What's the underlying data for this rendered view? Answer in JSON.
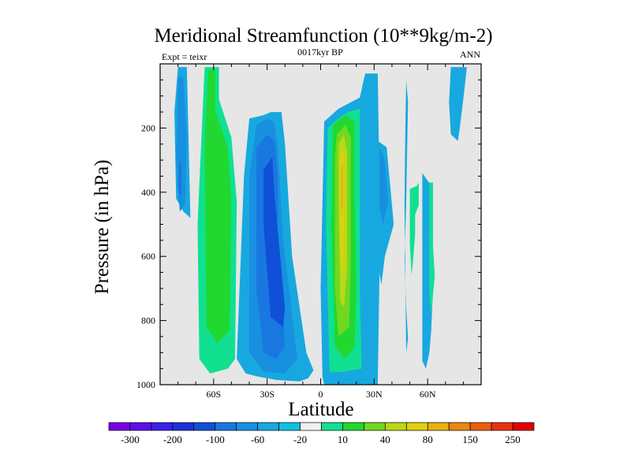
{
  "chart_data": {
    "type": "heatmap",
    "title": "Meridional Streamfunction (10**9kg/m-2)",
    "subtitle_center": "0017kyr BP",
    "subtitle_left": "Expt = teixr",
    "subtitle_right": "ANN",
    "xlabel": "Latitude",
    "ylabel": "Pressure (in hPa)",
    "xlim": [
      -90,
      90
    ],
    "ylim": [
      1000,
      0
    ],
    "xticks": [
      {
        "value": -60,
        "label": "60S"
      },
      {
        "value": -30,
        "label": "30S"
      },
      {
        "value": 0,
        "label": "0"
      },
      {
        "value": 30,
        "label": "30N"
      },
      {
        "value": 60,
        "label": "60N"
      }
    ],
    "yticks": [
      {
        "value": 200,
        "label": "200"
      },
      {
        "value": 400,
        "label": "400"
      },
      {
        "value": 600,
        "label": "600"
      },
      {
        "value": 800,
        "label": "800"
      },
      {
        "value": 1000,
        "label": "1000"
      }
    ],
    "background_color": "#e6e6e6",
    "colorbar": {
      "colors": [
        "#7a00e0",
        "#5a10e8",
        "#3a20e8",
        "#2030d8",
        "#1050d8",
        "#1878e0",
        "#1890e0",
        "#18a8e0",
        "#10c0e0",
        "#f0f0f0",
        "#10e090",
        "#20d830",
        "#70d820",
        "#b8d818",
        "#e0d010",
        "#e8b010",
        "#e88810",
        "#e86010",
        "#e83010",
        "#e00000"
      ],
      "labels": [
        "-300",
        "-200",
        "-100",
        "-60",
        "-20",
        "10",
        "40",
        "80",
        "150",
        "250"
      ]
    },
    "regions": [
      {
        "level": 7,
        "points": [
          [
            -80,
            10
          ],
          [
            -75,
            10
          ],
          [
            -73,
            480
          ],
          [
            -77,
            460
          ],
          [
            -81,
            420
          ],
          [
            -82,
            150
          ]
        ]
      },
      {
        "level": 7,
        "points": [
          [
            -43,
            350
          ],
          [
            -40,
            170
          ],
          [
            -32,
            160
          ],
          [
            -28,
            150
          ],
          [
            -22,
            150
          ],
          [
            -20,
            250
          ],
          [
            -16,
            600
          ],
          [
            -8,
            900
          ],
          [
            -4,
            955
          ],
          [
            -7,
            980
          ],
          [
            -12,
            990
          ],
          [
            -25,
            985
          ],
          [
            -35,
            975
          ],
          [
            -42,
            965
          ],
          [
            -47,
            920
          ]
        ]
      },
      {
        "level": 7,
        "points": [
          [
            25,
            30
          ],
          [
            32,
            30
          ],
          [
            33,
            380
          ],
          [
            33,
            655
          ],
          [
            32,
            1000
          ],
          [
            2,
            1000
          ],
          [
            1,
            975
          ],
          [
            0,
            700
          ],
          [
            2,
            180
          ],
          [
            10,
            140
          ],
          [
            22,
            105
          ]
        ]
      },
      {
        "level": 7,
        "points": [
          [
            73,
            10
          ],
          [
            82,
            10
          ],
          [
            80,
            110
          ],
          [
            78,
            200
          ],
          [
            77,
            240
          ],
          [
            73,
            220
          ],
          [
            72,
            120
          ]
        ]
      },
      {
        "level": 7,
        "points": [
          [
            48,
            50
          ],
          [
            49,
            120
          ],
          [
            48,
            430
          ],
          [
            47,
            610
          ],
          [
            48,
            760
          ],
          [
            49,
            855
          ],
          [
            48,
            900
          ],
          [
            47,
            440
          ],
          [
            47.5,
            200
          ]
        ]
      },
      {
        "level": 7,
        "points": [
          [
            32,
            240
          ],
          [
            37,
            260
          ],
          [
            41,
            500
          ],
          [
            36,
            600
          ],
          [
            34,
            690
          ],
          [
            33,
            650
          ],
          [
            32,
            450
          ]
        ]
      },
      {
        "level": 7,
        "points": [
          [
            57,
            340
          ],
          [
            62,
            380
          ],
          [
            61,
            540
          ],
          [
            63,
            700
          ],
          [
            62,
            830
          ],
          [
            61,
            900
          ],
          [
            59,
            950
          ],
          [
            57,
            925
          ],
          [
            57,
            600
          ]
        ]
      },
      {
        "level": 6,
        "points": [
          [
            -80,
            40
          ],
          [
            -77,
            40
          ],
          [
            -75,
            230
          ],
          [
            -76,
            440
          ],
          [
            -79,
            460
          ],
          [
            -81,
            300
          ]
        ]
      },
      {
        "level": 6,
        "points": [
          [
            -40,
            350
          ],
          [
            -36,
            190
          ],
          [
            -30,
            170
          ],
          [
            -26,
            180
          ],
          [
            -24,
            260
          ],
          [
            -21,
            550
          ],
          [
            -13,
            920
          ],
          [
            -20,
            965
          ],
          [
            -32,
            960
          ],
          [
            -40,
            900
          ]
        ]
      },
      {
        "level": 6,
        "points": [
          [
            33,
            260
          ],
          [
            36,
            300
          ],
          [
            38,
            430
          ],
          [
            35,
            500
          ],
          [
            33,
            450
          ]
        ]
      },
      {
        "level": 5,
        "points": [
          [
            -79,
            300
          ],
          [
            -78,
            320
          ],
          [
            -78,
            400
          ],
          [
            -79,
            420
          ],
          [
            -80,
            380
          ]
        ]
      },
      {
        "level": 5,
        "points": [
          [
            -36,
            260
          ],
          [
            -30,
            220
          ],
          [
            -26,
            240
          ],
          [
            -24,
            340
          ],
          [
            -24,
            520
          ],
          [
            -20,
            880
          ],
          [
            -25,
            920
          ],
          [
            -32,
            900
          ],
          [
            -36,
            700
          ]
        ]
      },
      {
        "level": 4,
        "points": [
          [
            -32,
            330
          ],
          [
            -27,
            290
          ],
          [
            -26,
            400
          ],
          [
            -20,
            760
          ],
          [
            -21,
            820
          ],
          [
            -28,
            790
          ],
          [
            -32,
            500
          ]
        ]
      },
      {
        "level": 10,
        "points": [
          [
            -65,
            10
          ],
          [
            -57,
            10
          ],
          [
            -57,
            110
          ],
          [
            -50,
            230
          ],
          [
            -47,
            430
          ],
          [
            -48,
            920
          ],
          [
            -52,
            950
          ],
          [
            -62,
            965
          ],
          [
            -68,
            920
          ],
          [
            -69,
            500
          ],
          [
            -67,
            250
          ]
        ]
      },
      {
        "level": 11,
        "points": [
          [
            -63,
            20
          ],
          [
            -59,
            20
          ],
          [
            -59,
            150
          ],
          [
            -52,
            260
          ],
          [
            -50,
            420
          ],
          [
            -51,
            830
          ],
          [
            -58,
            870
          ],
          [
            -64,
            820
          ],
          [
            -65,
            250
          ]
        ]
      },
      {
        "level": 10,
        "points": [
          [
            50,
            390
          ],
          [
            54,
            380
          ],
          [
            55,
            370
          ],
          [
            55,
            440
          ],
          [
            53,
            470
          ],
          [
            53,
            530
          ],
          [
            52,
            600
          ],
          [
            51,
            660
          ],
          [
            50,
            560
          ]
        ]
      },
      {
        "level": 10,
        "points": [
          [
            61,
            370
          ],
          [
            63,
            370
          ],
          [
            63,
            570
          ],
          [
            64,
            660
          ],
          [
            62,
            780
          ],
          [
            61,
            720
          ],
          [
            61,
            420
          ]
        ]
      },
      {
        "level": 10,
        "points": [
          [
            10,
            170
          ],
          [
            15,
            150
          ],
          [
            22,
            140
          ],
          [
            22,
            210
          ],
          [
            22,
            700
          ],
          [
            23,
            950
          ],
          [
            12,
            960
          ],
          [
            5,
            960
          ],
          [
            3,
            500
          ],
          [
            4,
            200
          ]
        ]
      },
      {
        "level": 11,
        "points": [
          [
            7,
            190
          ],
          [
            14,
            160
          ],
          [
            19,
            180
          ],
          [
            19,
            400
          ],
          [
            20,
            700
          ],
          [
            19,
            880
          ],
          [
            14,
            920
          ],
          [
            8,
            880
          ],
          [
            6,
            500
          ]
        ]
      },
      {
        "level": 12,
        "points": [
          [
            9,
            220
          ],
          [
            14,
            190
          ],
          [
            17,
            230
          ],
          [
            17,
            600
          ],
          [
            16,
            820
          ],
          [
            10,
            850
          ],
          [
            8,
            700
          ],
          [
            8,
            300
          ]
        ]
      },
      {
        "level": 13,
        "points": [
          [
            10,
            250
          ],
          [
            13,
            220
          ],
          [
            15,
            280
          ],
          [
            15,
            640
          ],
          [
            13,
            760
          ],
          [
            11,
            740
          ],
          [
            10,
            400
          ]
        ]
      },
      {
        "level": 14,
        "points": [
          [
            11,
            290
          ],
          [
            13,
            270
          ],
          [
            13,
            600
          ],
          [
            12,
            660
          ],
          [
            11,
            560
          ]
        ]
      },
      {
        "level": 15,
        "points": [
          [
            11.5,
            320
          ],
          [
            12.5,
            310
          ],
          [
            12.5,
            420
          ],
          [
            12,
            480
          ],
          [
            11.5,
            440
          ]
        ]
      }
    ]
  }
}
